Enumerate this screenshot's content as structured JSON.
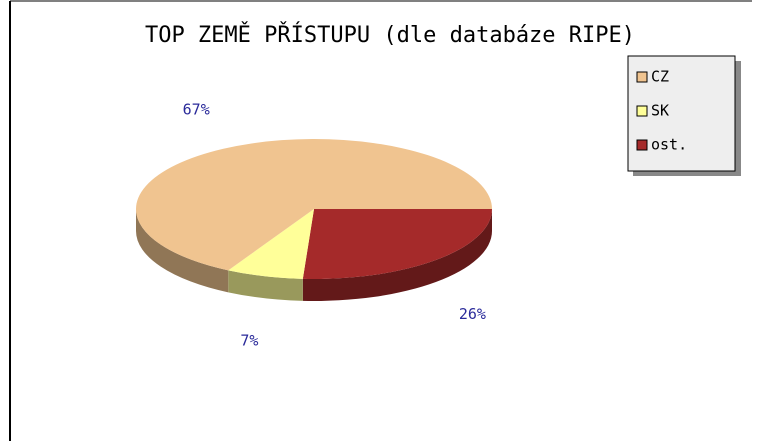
{
  "chart_data": {
    "type": "pie",
    "title": "TOP ZEMĚ PŘÍSTUPU (dle databáze RIPE)",
    "series": [
      {
        "name": "CZ",
        "color": "#f0c490",
        "values": [
          67
        ],
        "value_labels": [
          "67%"
        ]
      },
      {
        "name": "SK",
        "color": "#ffff99",
        "values": [
          7
        ],
        "value_labels": [
          "7%"
        ]
      },
      {
        "name": "ost.",
        "color": "#a52a2a",
        "values": [
          26
        ],
        "value_labels": [
          "26%"
        ]
      }
    ]
  }
}
